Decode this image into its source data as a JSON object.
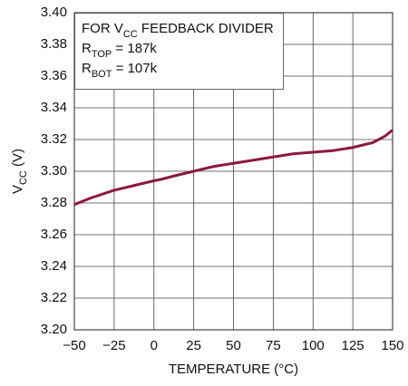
{
  "chart_data": {
    "type": "line",
    "xlabel": "TEMPERATURE (°C)",
    "ylabel": [
      "V",
      "CC",
      " (V)"
    ],
    "annotation": [
      [
        "FOR V",
        "CC",
        " FEEDBACK DIVIDER"
      ],
      [
        "R",
        "TOP",
        " = 187k"
      ],
      [
        "R",
        "BOT",
        " = 107k"
      ]
    ],
    "x": [
      -50,
      -40,
      -25,
      -12.5,
      0,
      5,
      12.5,
      25,
      37.5,
      50,
      62.5,
      75,
      87.5,
      100,
      112.5,
      125,
      137.5,
      145,
      150
    ],
    "series": [
      {
        "color": "#8b1a3c",
        "values": [
          3.279,
          3.283,
          3.288,
          3.291,
          3.294,
          3.295,
          3.297,
          3.3,
          3.303,
          3.305,
          3.307,
          3.309,
          3.311,
          3.312,
          3.313,
          3.315,
          3.318,
          3.322,
          3.326
        ]
      }
    ],
    "xlim": [
      -50,
      150
    ],
    "xticks": [
      {
        "value": -50,
        "label": "−50"
      },
      {
        "value": -25,
        "label": "−25"
      },
      0,
      25,
      50,
      75,
      100,
      125,
      150
    ],
    "ylim": [
      3.2,
      3.4
    ],
    "yticks": [
      {
        "value": 3.2,
        "label": "3.20"
      },
      3.22,
      3.24,
      3.26,
      3.28,
      {
        "value": 3.3,
        "label": "3.30"
      },
      3.32,
      3.34,
      3.36,
      3.38,
      {
        "value": 3.4,
        "label": "3.40"
      }
    ],
    "grid": true
  }
}
